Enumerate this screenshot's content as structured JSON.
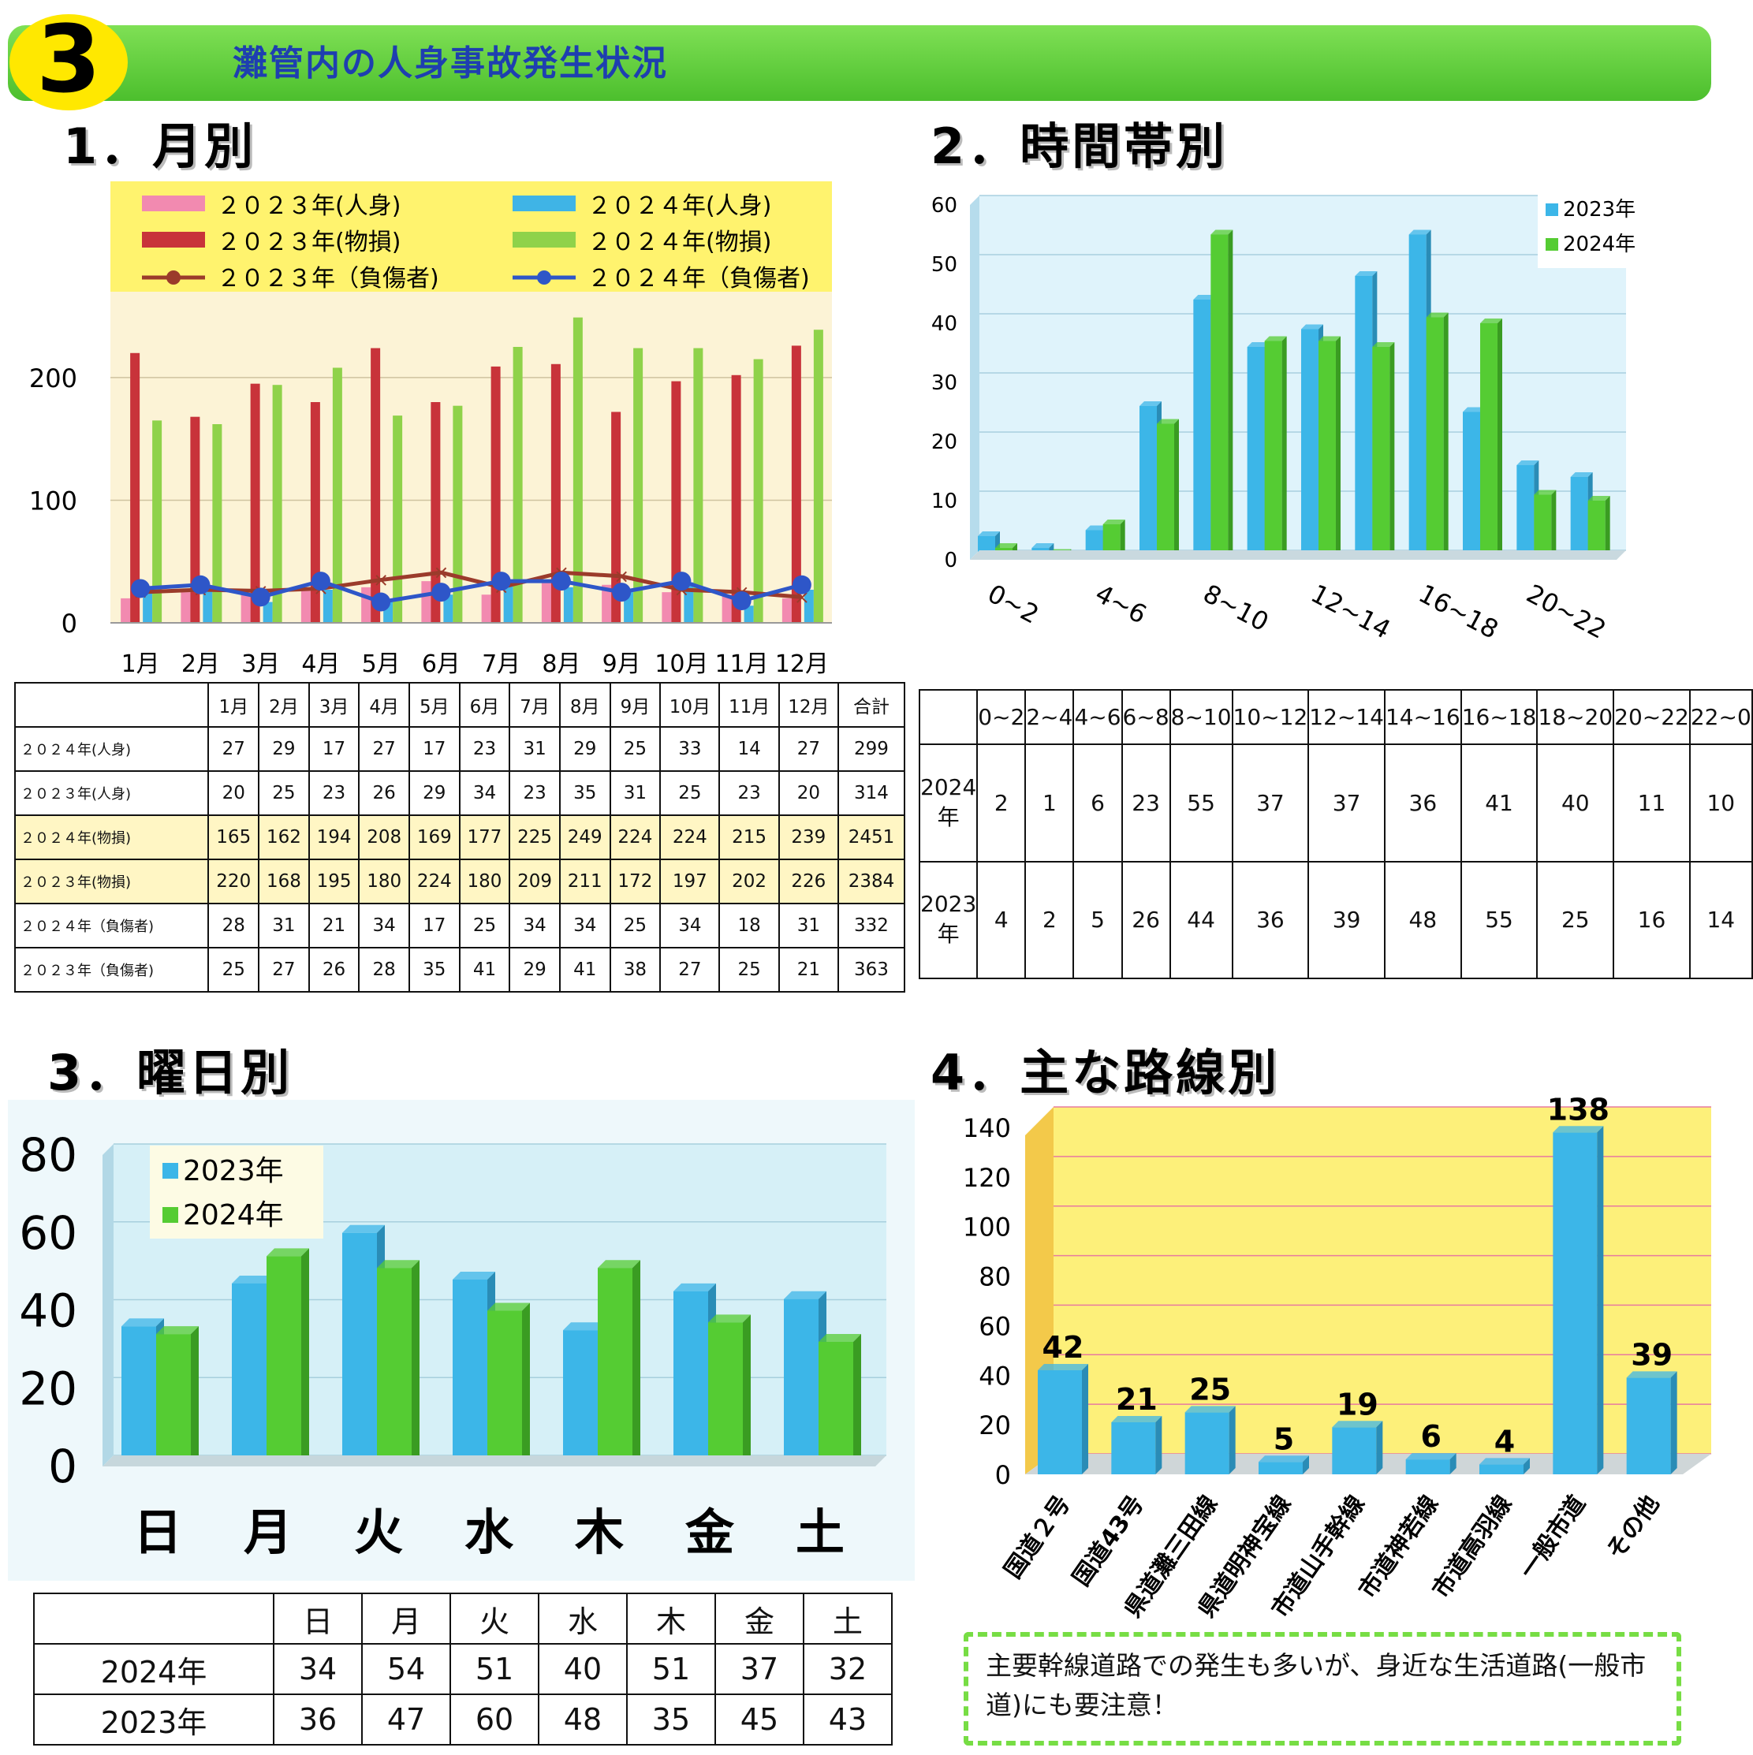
{
  "header": {
    "badge": "3",
    "title": "灘管内の人身事故発生状況"
  },
  "sections": {
    "s1": "1．月別",
    "s2": "2．時間帯別",
    "s3": "3．曜日別",
    "s4": "4．主な路線別"
  },
  "note": "主要幹線道路での発生も多いが、身近な生活道路(一般市道)にも要注意！",
  "chart_data": [
    {
      "type": "bar",
      "categories": [
        "1月",
        "2月",
        "3月",
        "4月",
        "5月",
        "6月",
        "7月",
        "8月",
        "9月",
        "10月",
        "11月",
        "12月"
      ],
      "series": [
        {
          "name": "２０２３年(人身)",
          "kind": "bar",
          "color": "#f28ab0",
          "values": [
            20,
            25,
            23,
            26,
            29,
            34,
            23,
            35,
            31,
            25,
            23,
            20
          ]
        },
        {
          "name": "２０２３年(物損)",
          "kind": "bar",
          "color": "#c8333a",
          "values": [
            220,
            168,
            195,
            180,
            224,
            180,
            209,
            211,
            172,
            197,
            202,
            226
          ]
        },
        {
          "name": "２０２３年（負傷者)",
          "kind": "line",
          "color": "#9b3b2b",
          "values": [
            25,
            27,
            26,
            28,
            35,
            41,
            29,
            41,
            38,
            27,
            25,
            21
          ]
        },
        {
          "name": "２０２４年(人身)",
          "kind": "bar",
          "color": "#3fb4e6",
          "values": [
            27,
            29,
            17,
            27,
            17,
            23,
            31,
            29,
            25,
            33,
            14,
            27
          ]
        },
        {
          "name": "２０２４年(物損)",
          "kind": "bar",
          "color": "#8fd24a",
          "values": [
            165,
            162,
            194,
            208,
            169,
            177,
            225,
            249,
            224,
            224,
            215,
            239
          ]
        },
        {
          "name": "２０２４年（負傷者)",
          "kind": "line",
          "color": "#2e56c8",
          "values": [
            28,
            31,
            21,
            34,
            17,
            25,
            34,
            34,
            25,
            34,
            18,
            31
          ]
        }
      ],
      "yticks": [
        0,
        100,
        200
      ],
      "ylim": [
        0,
        270
      ]
    },
    {
      "type": "bar",
      "categories": [
        "0~2",
        "2~4",
        "4~6",
        "6~8",
        "8~10",
        "10~12",
        "12~14",
        "14~16",
        "16~18",
        "18~20",
        "20~22",
        "22~0"
      ],
      "xtick_labels": [
        "0~2",
        "4~6",
        "8~10",
        "12~14",
        "16~18",
        "20~22"
      ],
      "series": [
        {
          "name": "2023年",
          "color": "#3cb6e8",
          "values": [
            4,
            2,
            5,
            26,
            44,
            36,
            39,
            48,
            55,
            25,
            16,
            14
          ]
        },
        {
          "name": "2024年",
          "color": "#55cc33",
          "values": [
            2,
            1,
            6,
            23,
            55,
            37,
            37,
            36,
            41,
            40,
            11,
            10
          ]
        }
      ],
      "yticks": [
        0,
        10,
        20,
        30,
        40,
        50,
        60
      ],
      "ylim": [
        0,
        60
      ]
    },
    {
      "type": "bar",
      "categories": [
        "日",
        "月",
        "火",
        "水",
        "木",
        "金",
        "土"
      ],
      "series": [
        {
          "name": "2023年",
          "color": "#3cb6e8",
          "values": [
            36,
            47,
            60,
            48,
            35,
            45,
            43
          ]
        },
        {
          "name": "2024年",
          "color": "#55cc33",
          "values": [
            34,
            54,
            51,
            40,
            51,
            37,
            32
          ]
        }
      ],
      "yticks": [
        0,
        20,
        40,
        60,
        80
      ],
      "ylim": [
        0,
        80
      ]
    },
    {
      "type": "bar",
      "categories": [
        "国道２号",
        "国道43号",
        "県道灘三田線",
        "県道明神宝線",
        "市道山手幹線",
        "市道神若線",
        "市道高羽線",
        "一般市道",
        "その他"
      ],
      "values": [
        42,
        21,
        25,
        5,
        19,
        6,
        4,
        138,
        39
      ],
      "color": "#3cb6e8",
      "yticks": [
        0,
        20,
        40,
        60,
        80,
        100,
        120,
        140
      ],
      "ylim": [
        0,
        140
      ]
    }
  ],
  "table_month": {
    "header": [
      "",
      "1月",
      "2月",
      "3月",
      "4月",
      "5月",
      "6月",
      "7月",
      "8月",
      "9月",
      "10月",
      "11月",
      "12月",
      "合計"
    ],
    "rows": [
      {
        "label": "２０２４年(人身)",
        "values": [
          "27",
          "29",
          "17",
          "27",
          "17",
          "23",
          "31",
          "29",
          "25",
          "33",
          "14",
          "27",
          "299"
        ]
      },
      {
        "label": "２０２３年(人身)",
        "values": [
          "20",
          "25",
          "23",
          "26",
          "29",
          "34",
          "23",
          "35",
          "31",
          "25",
          "23",
          "20",
          "314"
        ]
      },
      {
        "label": "２０２４年(物損)",
        "values": [
          "165",
          "162",
          "194",
          "208",
          "169",
          "177",
          "225",
          "249",
          "224",
          "224",
          "215",
          "239",
          "2451"
        ]
      },
      {
        "label": "２０２３年(物損)",
        "values": [
          "220",
          "168",
          "195",
          "180",
          "224",
          "180",
          "209",
          "211",
          "172",
          "197",
          "202",
          "226",
          "2384"
        ]
      },
      {
        "label": "２０２４年（負傷者)",
        "values": [
          "28",
          "31",
          "21",
          "34",
          "17",
          "25",
          "34",
          "34",
          "25",
          "34",
          "18",
          "31",
          "332"
        ]
      },
      {
        "label": "２０２３年（負傷者)",
        "values": [
          "25",
          "27",
          "26",
          "28",
          "35",
          "41",
          "29",
          "41",
          "38",
          "27",
          "25",
          "21",
          "363"
        ]
      }
    ]
  },
  "table_time": {
    "header": [
      "",
      "0~2",
      "2~4",
      "4~6",
      "6~8",
      "8~10",
      "10~12",
      "12~14",
      "14~16",
      "16~18",
      "18~20",
      "20~22",
      "22~0"
    ],
    "rows": [
      {
        "label": "2024年",
        "values": [
          "2",
          "1",
          "6",
          "23",
          "55",
          "37",
          "37",
          "36",
          "41",
          "40",
          "11",
          "10"
        ]
      },
      {
        "label": "2023年",
        "values": [
          "4",
          "2",
          "5",
          "26",
          "44",
          "36",
          "39",
          "48",
          "55",
          "25",
          "16",
          "14"
        ]
      }
    ]
  },
  "table_week": {
    "header": [
      "",
      "日",
      "月",
      "火",
      "水",
      "木",
      "金",
      "土"
    ],
    "rows": [
      {
        "label": "2024年",
        "values": [
          "34",
          "54",
          "51",
          "40",
          "51",
          "37",
          "32"
        ]
      },
      {
        "label": "2023年",
        "values": [
          "36",
          "47",
          "60",
          "48",
          "35",
          "45",
          "43"
        ]
      }
    ]
  }
}
